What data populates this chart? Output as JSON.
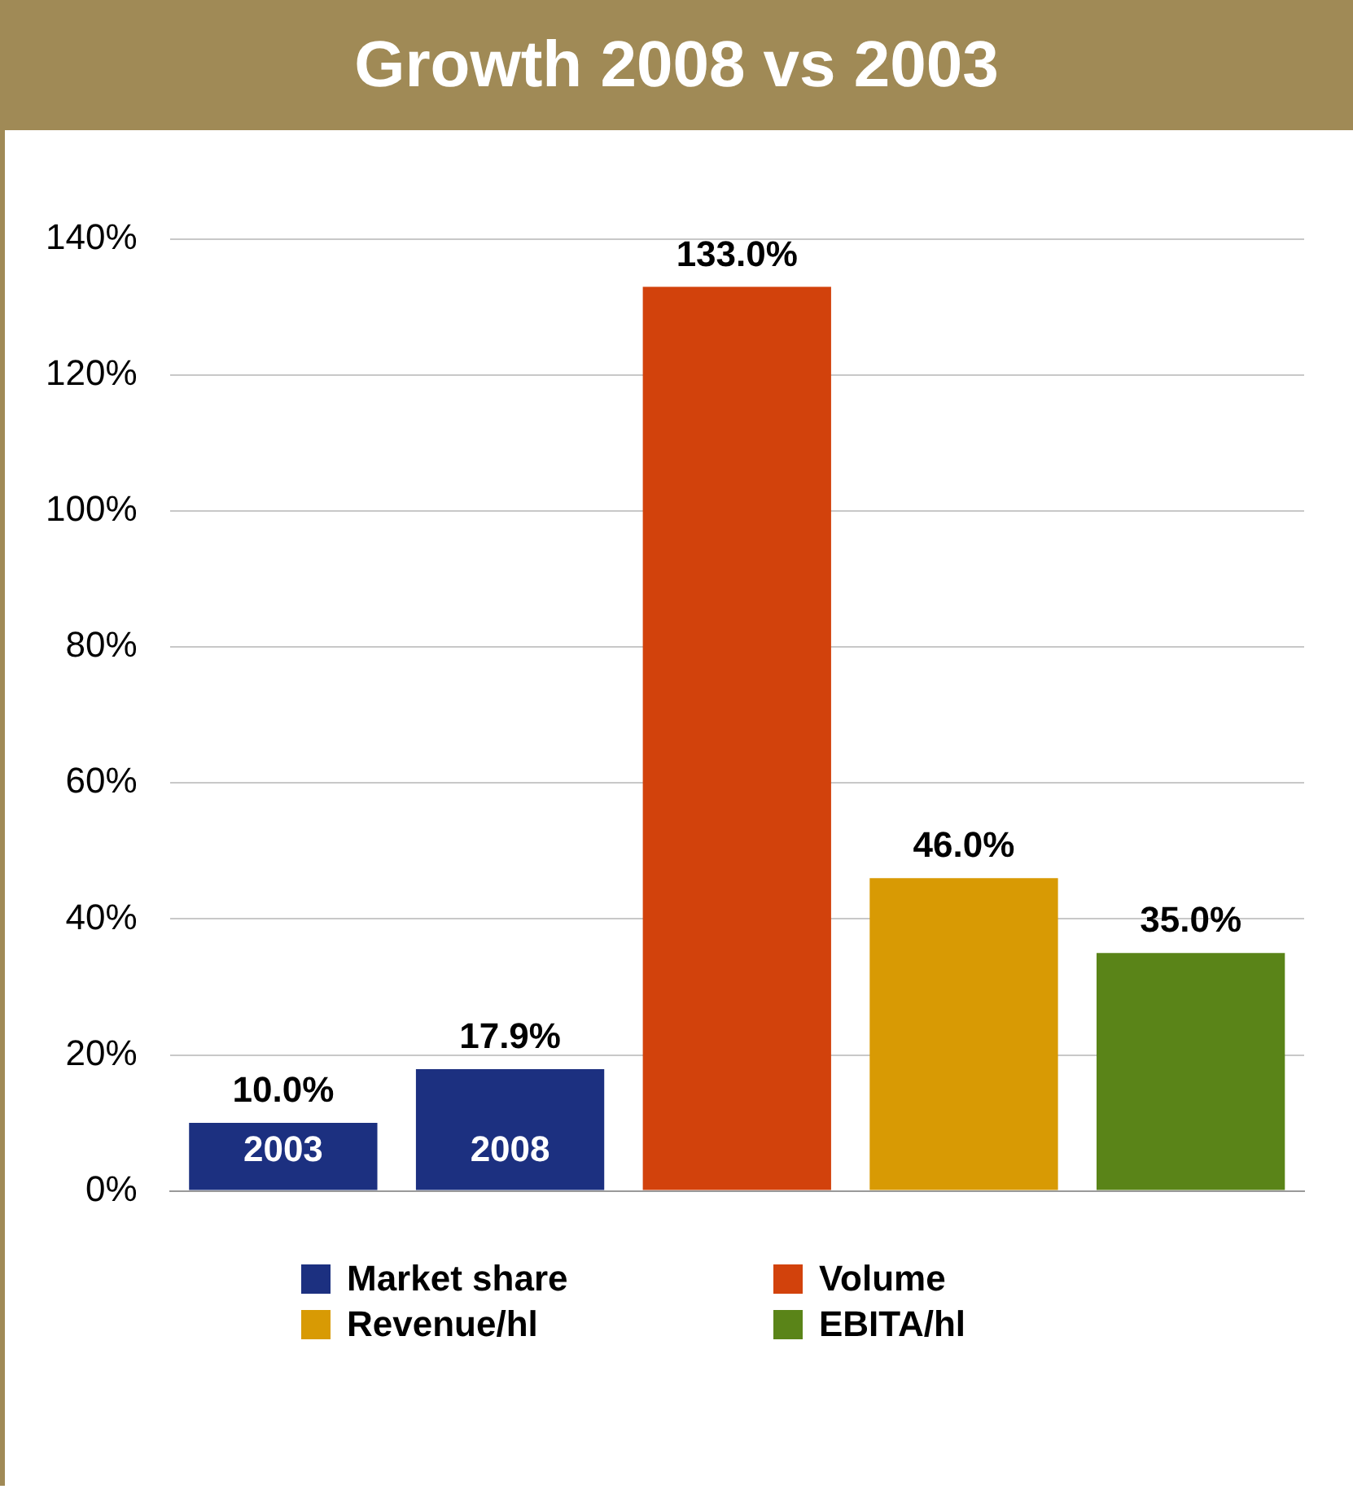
{
  "chart_data": {
    "type": "bar",
    "title": "Growth 2008 vs 2003",
    "categories": [
      "2003",
      "2008",
      null,
      null,
      null
    ],
    "series": [
      {
        "name": "Market share",
        "color": "#1c3080",
        "values": [
          10.0,
          17.9,
          null,
          null,
          null
        ],
        "value_labels": [
          "10.0%",
          "17.9%",
          null,
          null,
          null
        ]
      },
      {
        "name": "Volume",
        "color": "#d2420c",
        "values": [
          null,
          null,
          133.0,
          null,
          null
        ],
        "value_labels": [
          null,
          null,
          "133.0%",
          null,
          null
        ]
      },
      {
        "name": "Revenue/hl",
        "color": "#d89a04",
        "values": [
          null,
          null,
          null,
          46.0,
          null
        ],
        "value_labels": [
          null,
          null,
          null,
          "46.0%",
          null
        ]
      },
      {
        "name": "EBITA/hl",
        "color": "#5a8418",
        "values": [
          null,
          null,
          null,
          null,
          35.0
        ],
        "value_labels": [
          null,
          null,
          null,
          null,
          "35.0%"
        ]
      }
    ],
    "ylim": [
      0,
      140
    ],
    "yticks": [
      {
        "value": 0,
        "label": "0%"
      },
      {
        "value": 20,
        "label": "20%"
      },
      {
        "value": 40,
        "label": "40%"
      },
      {
        "value": 60,
        "label": "60%"
      },
      {
        "value": 80,
        "label": "80%"
      },
      {
        "value": 100,
        "label": "100%"
      },
      {
        "value": 120,
        "label": "120%"
      },
      {
        "value": 140,
        "label": "140%"
      }
    ],
    "grid": "y",
    "legend": "bottom"
  }
}
